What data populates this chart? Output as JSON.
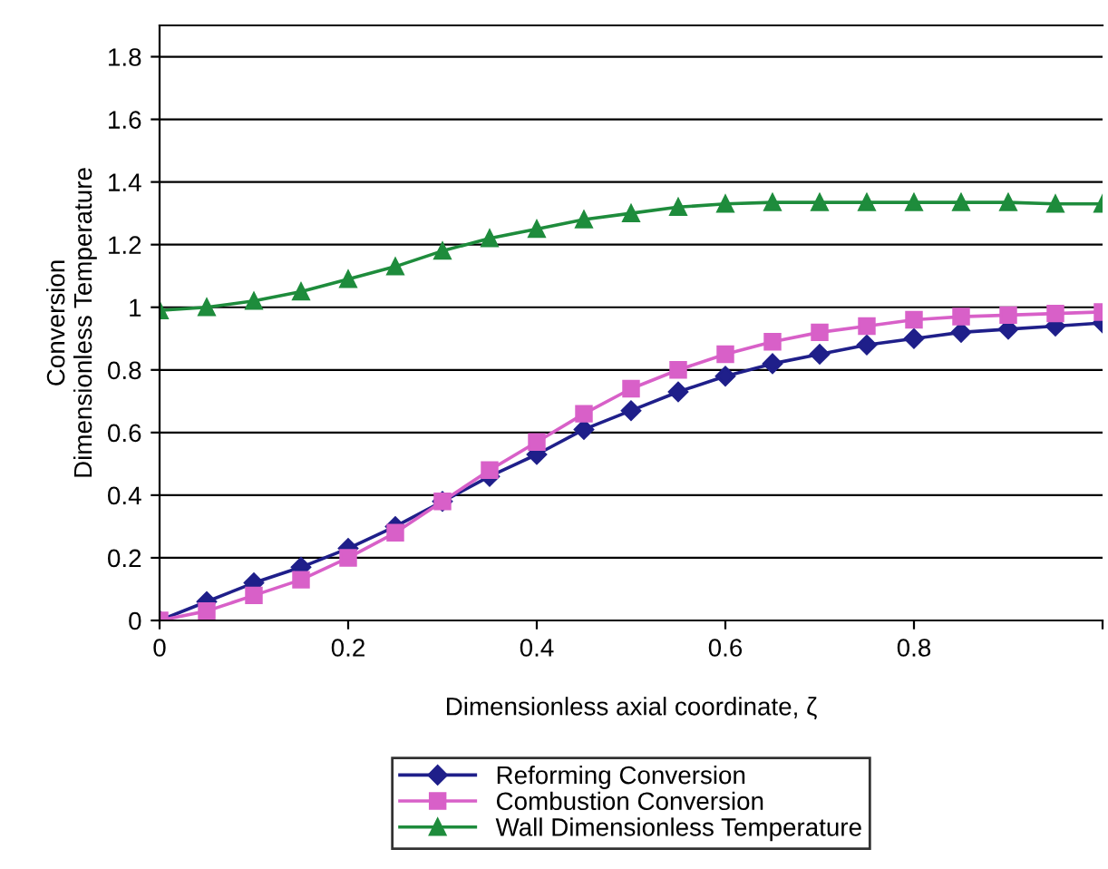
{
  "chart_data": {
    "type": "line",
    "xlabel": "Dimensionless axial coordinate, ζ",
    "ylabel": "Conversion\nDimensionless Temperature",
    "x": [
      0,
      0.05,
      0.1,
      0.15,
      0.2,
      0.25,
      0.3,
      0.35,
      0.4,
      0.45,
      0.5,
      0.55,
      0.6,
      0.65,
      0.7,
      0.75,
      0.8,
      0.85,
      0.9,
      0.95,
      1.0
    ],
    "series": [
      {
        "name": "Reforming Conversion",
        "color": "#1f1f8a",
        "marker": "diamond",
        "values": [
          0,
          0.06,
          0.12,
          0.17,
          0.23,
          0.3,
          0.38,
          0.46,
          0.53,
          0.61,
          0.67,
          0.73,
          0.78,
          0.82,
          0.85,
          0.88,
          0.9,
          0.92,
          0.93,
          0.94,
          0.95
        ]
      },
      {
        "name": "Combustion Conversion",
        "color": "#d860c8",
        "marker": "square",
        "values": [
          0,
          0.03,
          0.08,
          0.13,
          0.2,
          0.28,
          0.38,
          0.48,
          0.57,
          0.66,
          0.74,
          0.8,
          0.85,
          0.89,
          0.92,
          0.94,
          0.96,
          0.97,
          0.975,
          0.98,
          0.985
        ]
      },
      {
        "name": "Wall Dimensionless Temperature",
        "color": "#1e8c3c",
        "marker": "triangle",
        "values": [
          0.99,
          1.0,
          1.02,
          1.05,
          1.09,
          1.13,
          1.18,
          1.22,
          1.25,
          1.28,
          1.3,
          1.32,
          1.33,
          1.335,
          1.335,
          1.335,
          1.335,
          1.335,
          1.335,
          1.33,
          1.33
        ]
      }
    ],
    "xlim": [
      0,
      1.0
    ],
    "xticks": [
      0,
      0.2,
      0.4,
      0.6,
      0.8,
      {
        "value": 1.0,
        "label": null
      }
    ],
    "ylim": [
      0,
      1.9
    ],
    "yticks": [
      0,
      0.2,
      0.4,
      0.6,
      0.8,
      1,
      1.2,
      1.4,
      1.6,
      1.8
    ],
    "grid": "y",
    "legend": "bottom",
    "line_style": "solid"
  }
}
